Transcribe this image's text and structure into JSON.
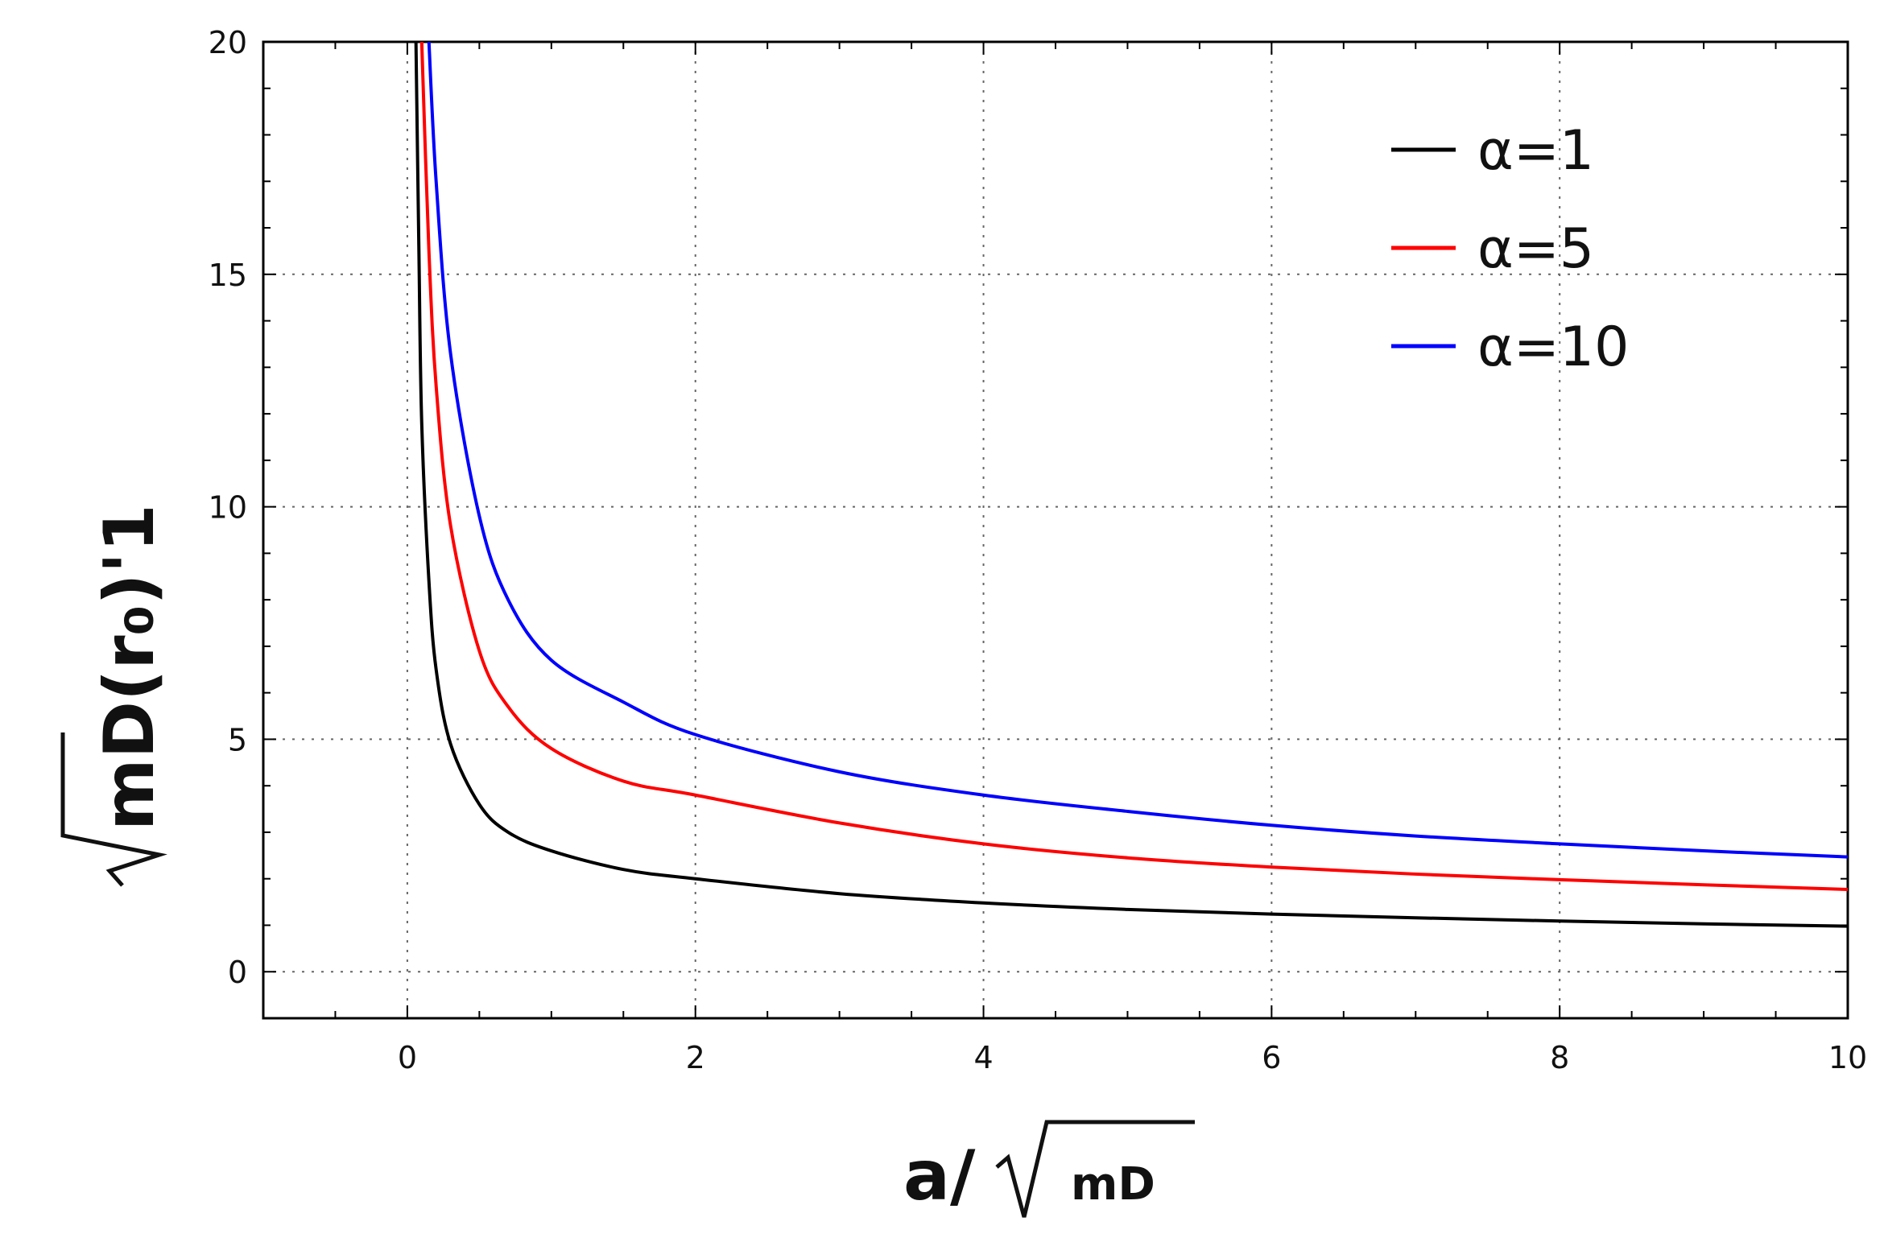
{
  "chart_data": {
    "type": "line",
    "title": "",
    "xlabel": "a/√mD",
    "ylabel": "√mD(r0)'1",
    "xlim": [
      -1,
      10
    ],
    "ylim": [
      -1,
      20
    ],
    "xticks": [
      "0",
      "2",
      "4",
      "6",
      "8",
      "10"
    ],
    "yticks": [
      "0",
      "5",
      "10",
      "15",
      "20"
    ],
    "grid": true,
    "legend_position": "top-right",
    "series": [
      {
        "name": "α=1",
        "color": "#000000",
        "x": [
          0.06,
          0.08,
          0.1,
          0.15,
          0.2,
          0.3,
          0.5,
          0.7,
          1,
          1.5,
          2,
          3,
          4,
          5,
          6,
          7,
          8,
          9,
          10
        ],
        "y": [
          20,
          15.6,
          11.8,
          8.4,
          6.5,
          4.9,
          3.6,
          3.0,
          2.6,
          2.2,
          2.0,
          1.68,
          1.48,
          1.34,
          1.24,
          1.16,
          1.09,
          1.03,
          0.98
        ]
      },
      {
        "name": "α=5",
        "color": "#ff0000",
        "x": [
          0.1,
          0.15,
          0.2,
          0.3,
          0.5,
          0.7,
          1,
          1.5,
          2,
          3,
          4,
          5,
          6,
          7,
          8,
          9,
          10
        ],
        "y": [
          20,
          15.5,
          12.6,
          9.6,
          6.9,
          5.7,
          4.8,
          4.1,
          3.8,
          3.2,
          2.75,
          2.45,
          2.25,
          2.1,
          1.98,
          1.87,
          1.77
        ]
      },
      {
        "name": "α=10",
        "color": "#0000ff",
        "x": [
          0.15,
          0.2,
          0.3,
          0.5,
          0.7,
          1,
          1.5,
          2,
          3,
          4,
          5,
          6,
          7,
          8,
          9,
          10
        ],
        "y": [
          20,
          17.0,
          13.3,
          9.8,
          8.0,
          6.7,
          5.8,
          5.1,
          4.3,
          3.8,
          3.45,
          3.15,
          2.92,
          2.75,
          2.6,
          2.47
        ]
      }
    ]
  }
}
